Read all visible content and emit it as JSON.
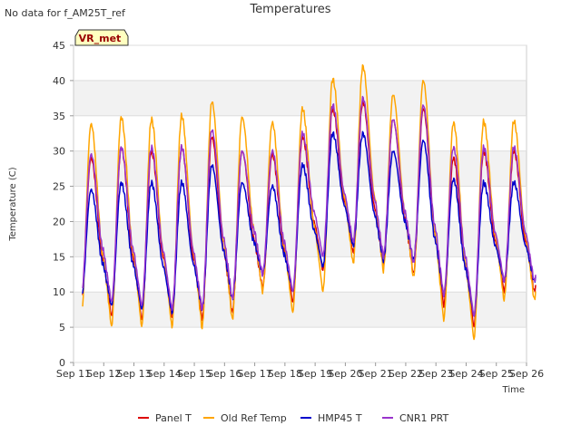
{
  "header": {
    "no_data_note": "No data for f_AM25T_ref",
    "badge": "VR_met"
  },
  "chart_data": {
    "type": "line",
    "title": "Temperatures",
    "xlabel": "Time",
    "ylabel": "Temperature (C)",
    "ylim": [
      0,
      45
    ],
    "xlim": [
      "2024-09-11",
      "2024-09-26"
    ],
    "yticks": [
      0,
      5,
      10,
      15,
      20,
      25,
      30,
      35,
      40,
      45
    ],
    "xtick_labels": [
      "Sep 11",
      "Sep 12",
      "Sep 13",
      "Sep 14",
      "Sep 15",
      "Sep 16",
      "Sep 17",
      "Sep 18",
      "Sep 19",
      "Sep 20",
      "Sep 21",
      "Sep 22",
      "Sep 23",
      "Sep 24",
      "Sep 25",
      "Sep 26"
    ],
    "grid": true,
    "legend_position": "bottom",
    "days": [
      "Sep 11",
      "Sep 12",
      "Sep 13",
      "Sep 14",
      "Sep 15",
      "Sep 16",
      "Sep 17",
      "Sep 18",
      "Sep 19",
      "Sep 20",
      "Sep 21",
      "Sep 22",
      "Sep 23",
      "Sep 24",
      "Sep 25"
    ],
    "series": [
      {
        "name": "Panel T",
        "color": "#dd0000",
        "daily_min": [
          8.5,
          6.5,
          6.0,
          6.5,
          6.0,
          7.0,
          10.5,
          8.5,
          13.0,
          15.5,
          13.5,
          12.5,
          8.0,
          5.0,
          10.0
        ],
        "daily_max": [
          29.0,
          30.5,
          30.0,
          30.5,
          32.0,
          30.0,
          29.5,
          32.0,
          36.0,
          37.0,
          34.5,
          36.0,
          29.0,
          30.0,
          30.0
        ]
      },
      {
        "name": "Old Ref Temp",
        "color": "#ffa500",
        "daily_min": [
          6.5,
          5.0,
          5.0,
          5.0,
          4.8,
          6.0,
          10.0,
          7.0,
          10.0,
          14.0,
          13.0,
          12.0,
          6.0,
          3.2,
          8.8
        ],
        "daily_max": [
          33.8,
          34.8,
          34.5,
          35.0,
          37.0,
          34.8,
          34.0,
          36.0,
          40.2,
          42.0,
          38.0,
          40.0,
          34.0,
          34.2,
          34.2
        ]
      },
      {
        "name": "HMP45 T",
        "color": "#0000cc",
        "daily_min": [
          9.0,
          8.0,
          7.5,
          7.0,
          7.5,
          9.0,
          12.5,
          10.0,
          13.5,
          16.5,
          14.5,
          14.5,
          9.5,
          6.5,
          11.5
        ],
        "daily_max": [
          24.5,
          25.5,
          25.5,
          25.5,
          28.0,
          25.5,
          25.0,
          28.0,
          32.5,
          32.5,
          30.0,
          31.5,
          26.0,
          25.5,
          25.5
        ]
      },
      {
        "name": "CNR1 PRT",
        "color": "#9933cc",
        "daily_min": [
          9.5,
          8.5,
          8.0,
          7.5,
          7.5,
          9.0,
          12.5,
          10.0,
          15.0,
          17.0,
          15.0,
          14.0,
          9.5,
          6.5,
          11.5
        ],
        "daily_max": [
          29.5,
          30.5,
          30.5,
          30.5,
          33.0,
          30.0,
          30.0,
          32.5,
          36.5,
          37.5,
          34.5,
          36.5,
          30.5,
          30.5,
          30.5
        ]
      }
    ]
  }
}
